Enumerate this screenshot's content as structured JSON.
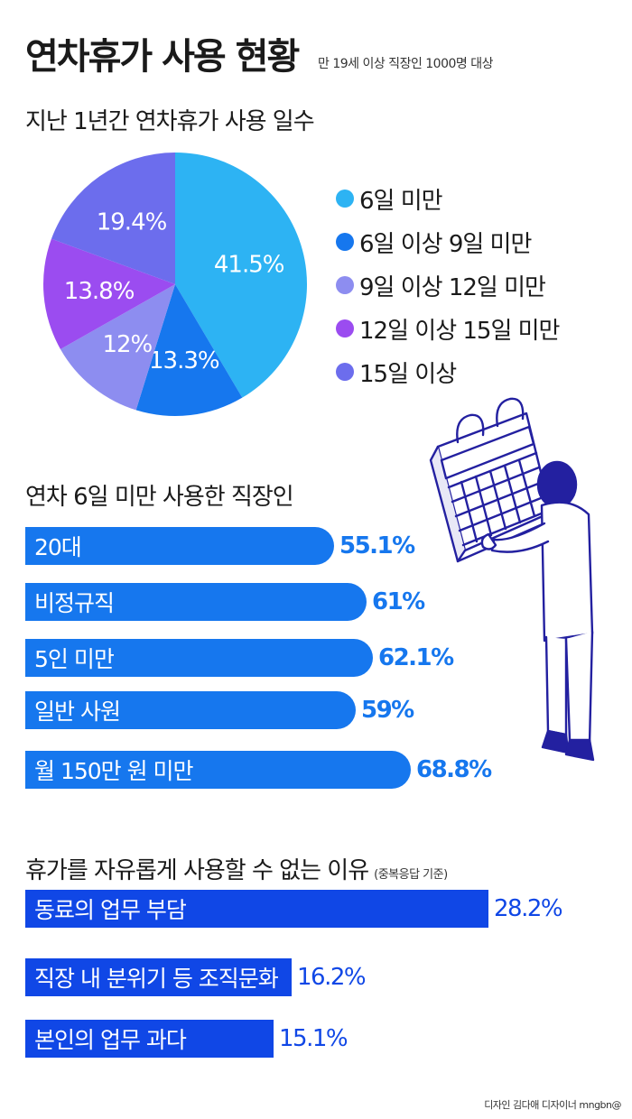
{
  "header": {
    "title": "연차휴가 사용 현황",
    "subtitle": "만 19세 이상 직장인 1000명 대상"
  },
  "colors": {
    "pie": [
      "#2db3f3",
      "#1677ee",
      "#8d8df0",
      "#9b4cf0",
      "#6c6ded"
    ],
    "bar_primary": "#1677ee",
    "bar_secondary": "#1047e6",
    "illustration_line": "#2320a0"
  },
  "chart_data": [
    {
      "type": "pie",
      "title": "지난 1년간 연차휴가 사용 일수",
      "categories": [
        "6일 미만",
        "6일 이상 9일 미만",
        "9일 이상 12일 미만",
        "12일 이상 15일 미만",
        "15일 이상"
      ],
      "values": [
        41.5,
        13.3,
        12,
        13.8,
        19.4
      ],
      "labels": [
        "41.5%",
        "13.3%",
        "12%",
        "13.8%",
        "19.4%"
      ],
      "legend": "right"
    },
    {
      "type": "bar",
      "orientation": "horizontal",
      "title": "연차 6일 미만 사용한 직장인",
      "categories": [
        "20대",
        "비정규직",
        "5인 미만",
        "일반 사원",
        "월 150만 원 미만"
      ],
      "values": [
        55.1,
        61,
        62.1,
        59,
        68.8
      ],
      "labels": [
        "55.1%",
        "61%",
        "62.1%",
        "59%",
        "68.8%"
      ]
    },
    {
      "type": "bar",
      "orientation": "horizontal",
      "title": "휴가를 자유롭게 사용할 수 없는 이유",
      "note": "(중복응답 기준)",
      "categories": [
        "동료의 업무 부담",
        "직장 내 분위기 등 조직문화",
        "본인의 업무 과다"
      ],
      "values": [
        28.2,
        16.2,
        15.1
      ],
      "labels": [
        "28.2%",
        "16.2%",
        "15.1%"
      ]
    }
  ],
  "credit": "디자인 김다애 디자이너 mngbn@"
}
